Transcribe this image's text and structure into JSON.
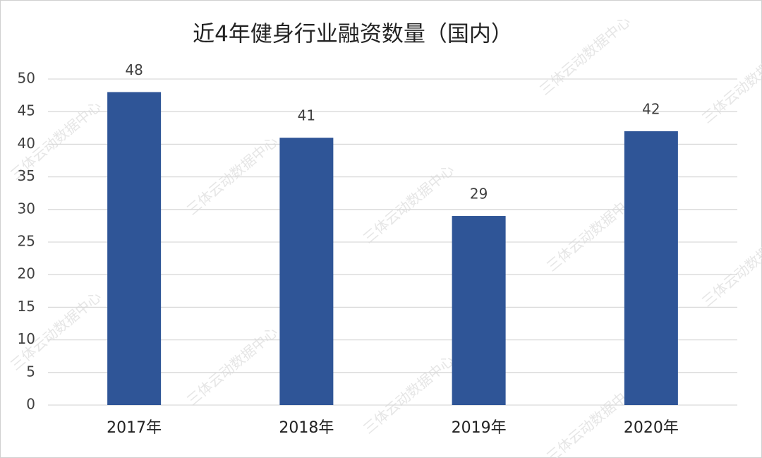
{
  "chart_data": {
    "type": "bar",
    "title": "近4年健身行业融资数量（国内）",
    "categories": [
      "2017年",
      "2018年",
      "2019年",
      "2020年"
    ],
    "values": [
      48,
      41,
      29,
      42
    ],
    "color": "#2f5597",
    "ylim": [
      0,
      50
    ],
    "yticks": [
      0,
      5,
      10,
      15,
      20,
      25,
      30,
      35,
      40,
      45,
      50
    ],
    "grid": true,
    "watermark": "三体云动数据中心"
  }
}
